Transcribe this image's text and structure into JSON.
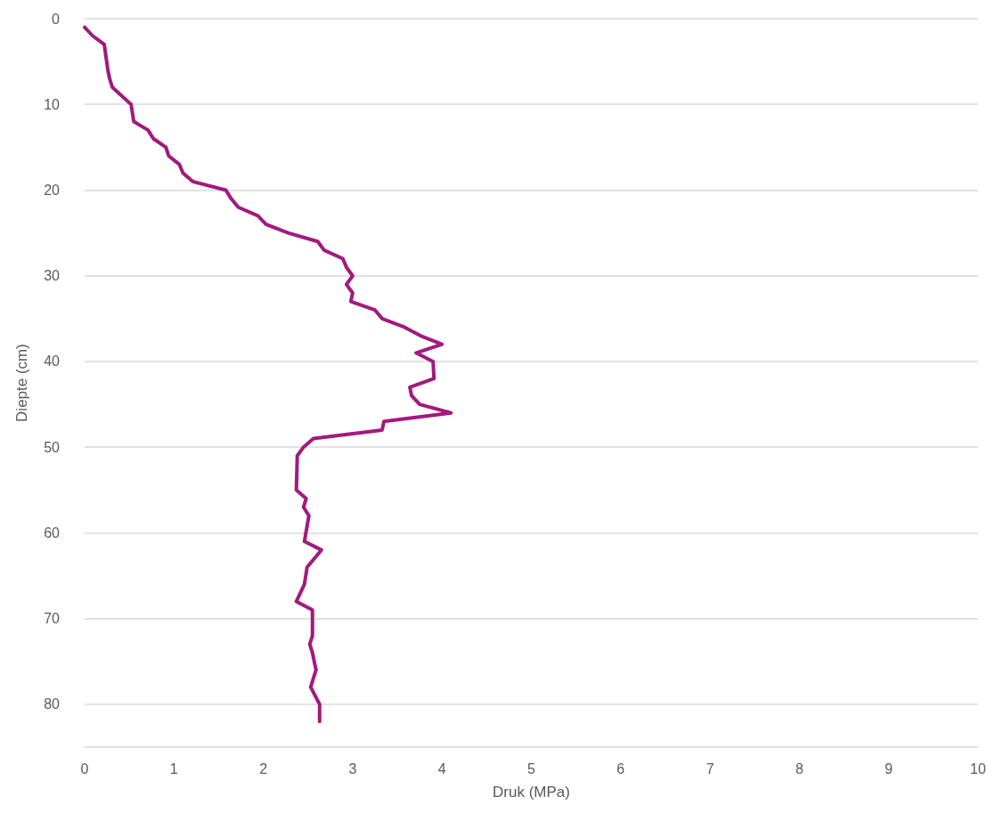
{
  "chart_data": {
    "type": "line",
    "xlabel": "Druk (MPa)",
    "ylabel": "Diepte (cm)",
    "series": [
      {
        "color": "#a2197f",
        "x": [
          0.0,
          0.09,
          0.22,
          0.26,
          0.28,
          0.31,
          0.52,
          0.55,
          0.71,
          0.77,
          0.91,
          0.94,
          1.06,
          1.1,
          1.21,
          1.58,
          1.64,
          1.72,
          1.94,
          2.03,
          2.28,
          2.61,
          2.68,
          2.89,
          2.93,
          3.0,
          2.93,
          3.0,
          2.98,
          3.25,
          3.33,
          3.58,
          3.76,
          4.0,
          3.71,
          3.9,
          3.91,
          3.64,
          3.66,
          3.75,
          4.1,
          3.35,
          3.33,
          2.56,
          2.45,
          2.38,
          2.37,
          2.48,
          2.45,
          2.51,
          2.46,
          2.65,
          2.49,
          2.46,
          2.37,
          2.55,
          2.55,
          2.52,
          2.55,
          2.59,
          2.53,
          2.63,
          2.63
        ],
        "values": [
          1,
          2,
          3,
          6,
          7,
          8,
          10,
          12,
          13,
          14,
          15,
          16,
          17,
          18,
          19,
          20,
          21,
          22,
          23,
          24,
          25,
          26,
          27,
          28,
          29,
          30,
          31,
          32,
          33,
          34,
          35,
          36,
          37,
          38,
          39,
          40,
          42,
          43,
          44,
          45,
          46,
          47,
          48,
          49,
          50,
          51,
          55,
          56,
          57,
          58,
          61,
          62,
          64,
          66,
          68,
          69,
          72,
          73,
          74,
          76,
          78,
          80,
          82
        ]
      }
    ],
    "xlim": [
      0,
      10
    ],
    "xticks": [
      0,
      1,
      2,
      3,
      4,
      5,
      6,
      7,
      8,
      9,
      10
    ],
    "ylim": [
      85,
      0
    ],
    "yticks": [
      0,
      10,
      20,
      30,
      40,
      50,
      60,
      70,
      80
    ],
    "grid": "y",
    "marker": "none",
    "line_style": "solid"
  }
}
